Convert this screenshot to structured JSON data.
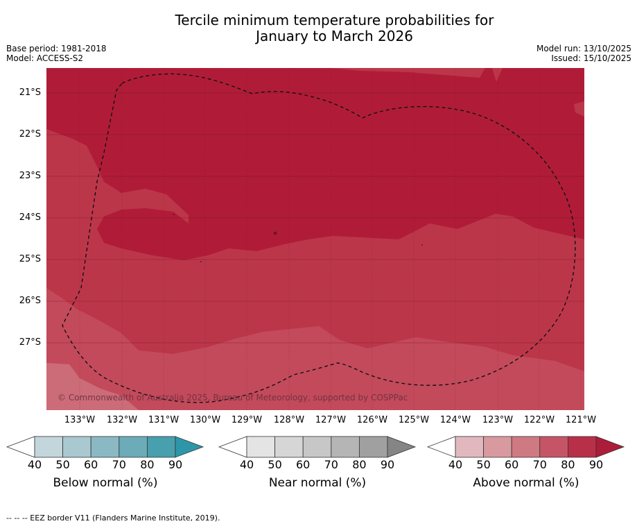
{
  "title_line1": "Tercile minimum temperature probabilities for",
  "title_line2": "January to March 2026",
  "base_period": "Base period: 1981-2018",
  "model": "Model: ACCESS-S2",
  "model_run": "Model run: 13/10/2025",
  "issued": "Issued: 15/10/2025",
  "copyright": "© Commonwealth of Australia 2025, Bureau of Meteorology, supported by COSPPac",
  "lat_labels": [
    "21°S",
    "22°S",
    "23°S",
    "24°S",
    "25°S",
    "26°S",
    "27°S"
  ],
  "lon_labels": [
    "133°W",
    "132°W",
    "131°W",
    "130°W",
    "129°W",
    "128°W",
    "127°W",
    "126°W",
    "125°W",
    "124°W",
    "123°W",
    "122°W",
    "121°W"
  ],
  "legends": {
    "below": {
      "label": "Below normal (%)",
      "ticks": [
        "40",
        "50",
        "60",
        "70",
        "80",
        "90"
      ],
      "colors": [
        "#c2d6dc",
        "#a9c8cf",
        "#8ab9c3",
        "#6cabb8",
        "#489fad",
        "#2e96a8"
      ]
    },
    "near": {
      "label": "Near normal (%)",
      "ticks": [
        "40",
        "50",
        "60",
        "70",
        "80",
        "90"
      ],
      "colors": [
        "#e4e4e4",
        "#d6d6d6",
        "#c7c7c7",
        "#b5b5b5",
        "#a0a0a0",
        "#858585"
      ]
    },
    "above": {
      "label": "Above normal (%)",
      "ticks": [
        "40",
        "50",
        "60",
        "70",
        "80",
        "90"
      ],
      "colors": [
        "#e2b8bf",
        "#d8999f",
        "#cf7983",
        "#c55566",
        "#b83048",
        "#ad1c38"
      ]
    }
  },
  "map_colors": {
    "deep": "#b01c38",
    "mid": "#bc3649",
    "light": "#c34a5b",
    "lighter": "#cc6c78"
  },
  "footnote": "--  --  -- EEZ border V11 (Flanders Marine Institute, 2019)."
}
